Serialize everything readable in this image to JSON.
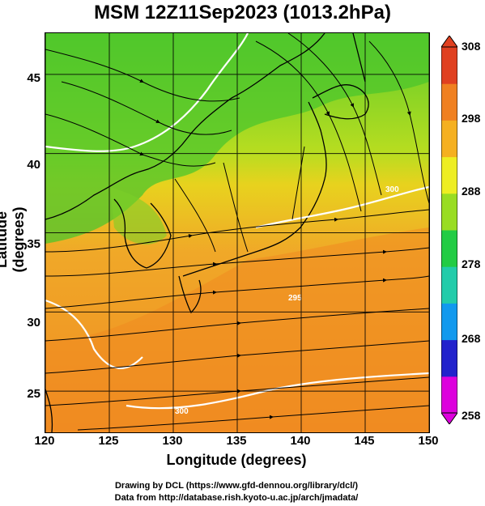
{
  "title": "MSM 12Z11Sep2023 (1013.2hPa)",
  "xlabel": "Longitude (degrees)",
  "ylabel": "Latitude  (degrees)",
  "x_ticks": [
    "120",
    "125",
    "130",
    "135",
    "140",
    "145",
    "150"
  ],
  "y_ticks": [
    "45",
    "40",
    "35",
    "30",
    "25"
  ],
  "x_range": [
    120,
    150
  ],
  "y_range": [
    22.4,
    47.6
  ],
  "colorbar": {
    "ticks": [
      "308",
      "298",
      "288",
      "278",
      "268",
      "258"
    ],
    "range": [
      258,
      308
    ],
    "colors": [
      "#dd00dd",
      "#2222cc",
      "#1199ee",
      "#22ccaa",
      "#22cc44",
      "#99dd22",
      "#eeee22",
      "#f5b020",
      "#f08020",
      "#e04020"
    ]
  },
  "contour_labels": [
    "295",
    "300",
    "300"
  ],
  "credit_lines": [
    "Drawing by DCL (https://www.gfd-dennou.org/library/dcl/)",
    "Data from http://database.rish.kyoto-u.ac.jp/arch/jmadata/"
  ]
}
